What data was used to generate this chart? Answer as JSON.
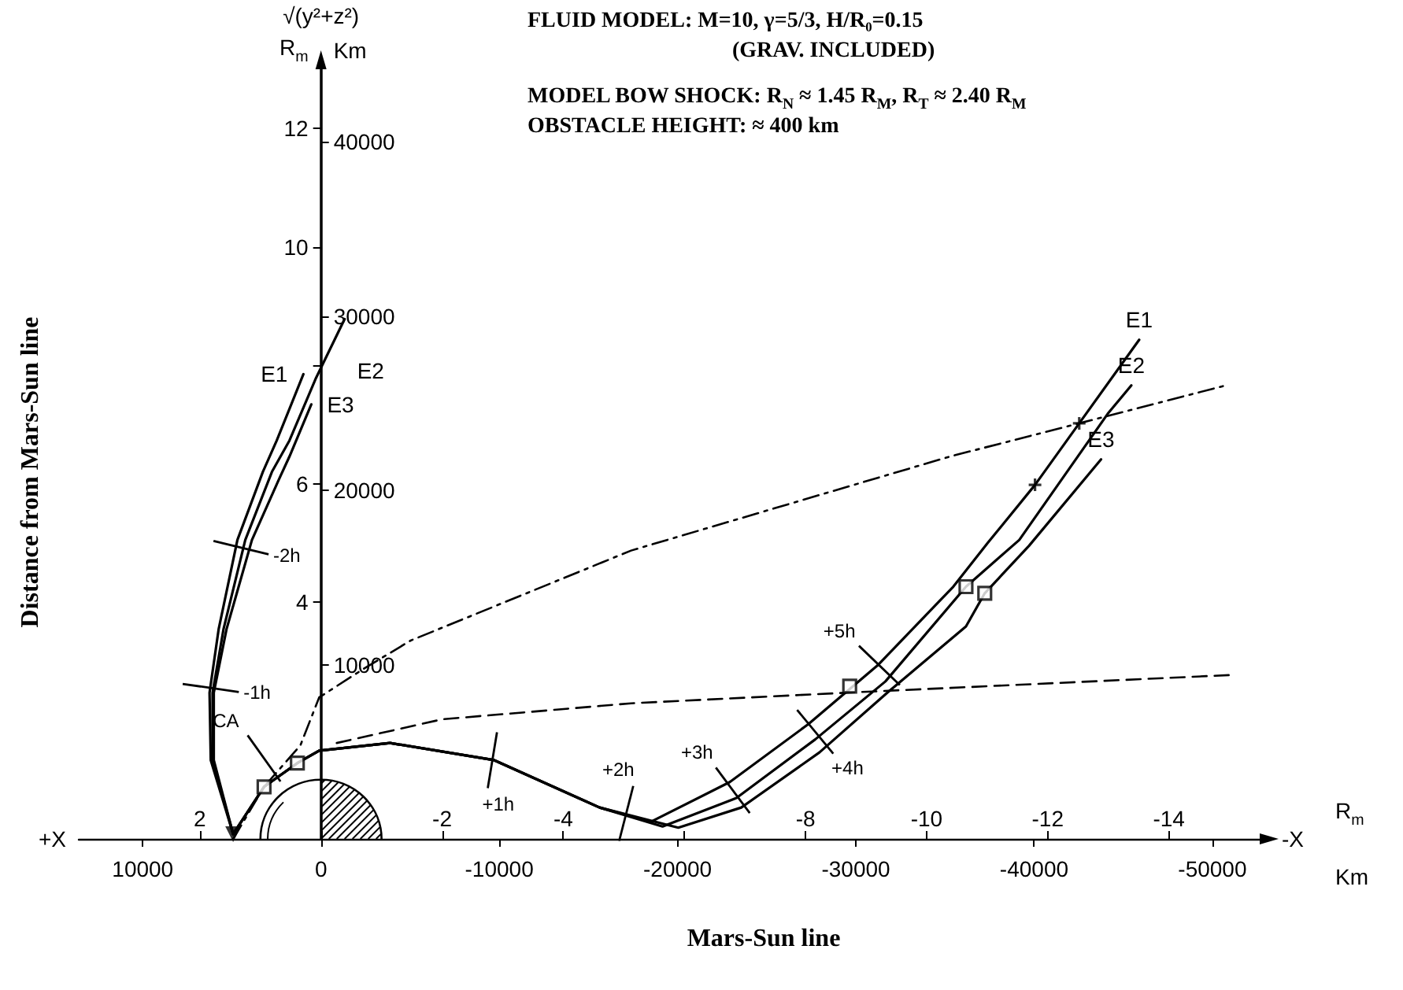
{
  "chart_data": {
    "type": "line",
    "title": "FLUID MODEL: M=10, γ=5/3, H/R₀=0.15\n(GRAV. INCLUDED)",
    "subtitle": "MODEL BOW SHOCK: R$_{N}$ ≈ 1.45 R$_{M}$, R$_{T}$ ≈ 2.40 R$_{M}$\nOBSTACLE HEIGHT: ≈ 400 km",
    "xlabel": "Mars-Sun line",
    "ylabel": "Distance from Mars-Sun line",
    "x2label": "Km",
    "y2label": "Km",
    "annotations": [
      "√(y²+z²)",
      "R$_{m}$",
      "+X",
      "-X",
      "R$_{m}$",
      {
        "text": "-2h",
        "x": 1.32,
        "y": 4.92
      },
      {
        "text": "-1h",
        "x": 1.82,
        "y": 2.55
      },
      {
        "text": "CA",
        "x": 0.94,
        "y": 1.36
      },
      {
        "text": "+1h",
        "x": -2.83,
        "y": 1.33
      },
      {
        "text": "+2h",
        "x": -5.04,
        "y": 0.43
      },
      {
        "text": "+3h",
        "x": -6.8,
        "y": 0.82
      },
      {
        "text": "+4h",
        "x": -8.16,
        "y": 1.81
      },
      {
        "text": "+5h",
        "x": -9.22,
        "y": 2.93
      }
    ],
    "xlim": [
      4,
      -15.5
    ],
    "xticks": [
      2,
      {
        "value": 0,
        "label": null
      },
      -2,
      -4,
      {
        "value": -6,
        "label": null
      },
      -8,
      -10,
      -12,
      -14
    ],
    "x2lim": [
      13588,
      -52654
    ],
    "x2ticks": [
      10000,
      0,
      -10000,
      -20000,
      -30000,
      -40000,
      -50000
    ],
    "ylim": [
      0,
      13
    ],
    "yticks": [
      4,
      6,
      {
        "value": 8,
        "label": null
      },
      10,
      12
    ],
    "y2lim": [
      0,
      44161
    ],
    "y2ticks": [
      10000,
      20000,
      30000,
      40000
    ],
    "grid": false,
    "legend": false,
    "series": [
      {
        "name": "E1",
        "type": "line",
        "color": "#000000",
        "line_style": "solid",
        "x": [
          0.29,
          0.73,
          0.96,
          1.38,
          1.69,
          1.84,
          1.82,
          1.45,
          0.94,
          0.39,
          0.03,
          -1.14,
          -2.86,
          -4.6,
          -5.45,
          -6.75,
          -8.05,
          -9.19,
          -10.44,
          -11.01,
          -11.79,
          -12.52,
          -13.51
        ],
        "values": [
          7.85,
          6.73,
          6.2,
          5.05,
          3.54,
          2.47,
          1.33,
          0.08,
          0.88,
          1.28,
          1.49,
          1.62,
          1.33,
          0.53,
          0.29,
          0.96,
          1.94,
          2.93,
          4.26,
          5.0,
          5.98,
          7.02,
          8.43
        ]
      },
      {
        "name": "E2",
        "type": "line",
        "color": "#000000",
        "line_style": "solid",
        "x": [
          -0.39,
          0.08,
          0.52,
          0.81,
          1.25,
          1.61,
          1.79,
          1.79,
          1.45,
          0.94,
          0.39,
          0.03,
          -1.14,
          -2.86,
          -4.6,
          -5.64,
          -6.86,
          -8.16,
          -9.32,
          -10.65,
          -11.53,
          -12.99,
          -13.38
        ],
        "values": [
          8.78,
          7.79,
          6.73,
          6.2,
          5.05,
          3.54,
          2.47,
          1.33,
          0.08,
          0.88,
          1.28,
          1.49,
          1.62,
          1.33,
          0.53,
          0.21,
          0.69,
          1.68,
          2.66,
          4.26,
          5.05,
          7.18,
          7.66
        ]
      },
      {
        "name": "E3",
        "type": "line",
        "color": "#000000",
        "line_style": "solid",
        "x": [
          0.16,
          0.52,
          0.7,
          1.14,
          1.56,
          1.77,
          1.77,
          1.45,
          0.94,
          0.39,
          0.03,
          -1.14,
          -2.86,
          -4.6,
          -5.9,
          -6.94,
          -8.23,
          -9.35,
          -10.65,
          -10.96,
          -11.69,
          -12.88
        ],
        "values": [
          7.34,
          6.46,
          6.06,
          5.05,
          3.54,
          2.47,
          1.33,
          0.08,
          0.88,
          1.28,
          1.49,
          1.62,
          1.33,
          0.53,
          0.19,
          0.53,
          1.46,
          2.47,
          3.59,
          4.15,
          4.95,
          6.41
        ]
      },
      {
        "type": "line",
        "color": "#000000",
        "line_style": "dashdot",
        "x": [
          1.45,
          0.94,
          0.34,
          0.03,
          -0.7,
          -1.48,
          -5.12,
          -10.39,
          -12.52,
          -14.94
        ],
        "values": [
          0,
          0.88,
          1.58,
          2.39,
          2.87,
          3.35,
          4.87,
          6.46,
          7.02,
          7.66
        ]
      },
      {
        "type": "line",
        "color": "#000000",
        "line_style": "dashed",
        "x": [
          -0.26,
          -2.0,
          -5.12,
          -8.68,
          -15.06
        ],
        "values": [
          1.62,
          2.02,
          2.29,
          2.47,
          2.77
        ]
      },
      {
        "type": "scatter",
        "color": "#000000",
        "marker": "square",
        "x": [
          0.94,
          0.39,
          -8.73,
          -10.65,
          -10.96
        ],
        "values": [
          0.88,
          1.28,
          2.58,
          4.26,
          4.15
        ]
      },
      {
        "type": "scatter",
        "color": "#000000",
        "marker": "cross",
        "x": [
          -11.79,
          -12.52
        ],
        "values": [
          5.98,
          7.02
        ]
      },
      {
        "type": "scatter",
        "color": "#000000",
        "marker": "triangle",
        "x": [
          1.45
        ],
        "values": [
          0.08
        ]
      }
    ]
  }
}
